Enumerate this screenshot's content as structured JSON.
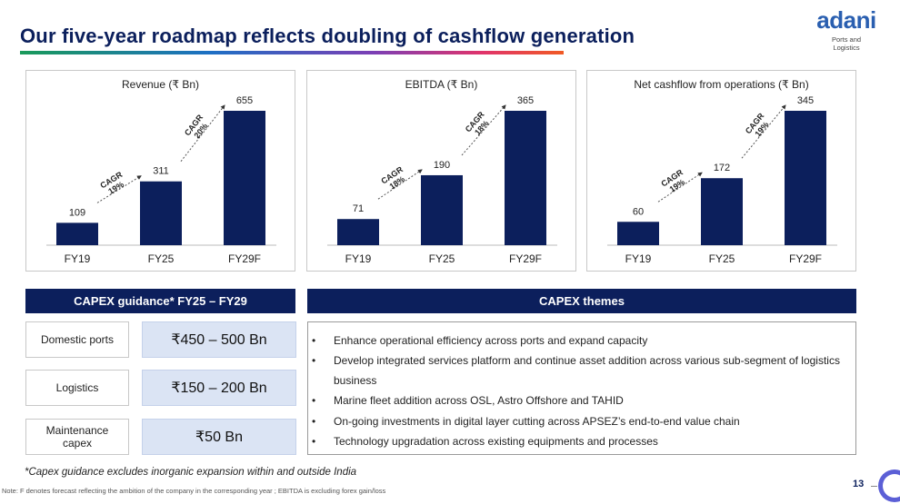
{
  "header": {
    "title": "Our five-year roadmap reflects doubling of cashflow generation",
    "logo": {
      "word": "adani",
      "sub_line1": "Ports and",
      "sub_line2": "Logistics"
    }
  },
  "colors": {
    "navy": "#0c1f5c",
    "bar": "#0c1f5c",
    "value_box": "#dbe4f4",
    "logo_blue": "#2a5fb0"
  },
  "chart_data": [
    {
      "type": "bar",
      "title": "Revenue (₹ Bn)",
      "categories": [
        "FY19",
        "FY25",
        "FY29F"
      ],
      "values": [
        109,
        311,
        655
      ],
      "cagr": [
        "CAGR\n19%",
        "CAGR\n20%"
      ],
      "ylim": [
        0,
        655
      ],
      "grid": false
    },
    {
      "type": "bar",
      "title": "EBITDA (₹ Bn)",
      "categories": [
        "FY19",
        "FY25",
        "FY29F"
      ],
      "values": [
        71,
        190,
        365
      ],
      "cagr": [
        "CAGR\n18%",
        "CAGR\n18%"
      ],
      "ylim": [
        0,
        365
      ],
      "grid": false
    },
    {
      "type": "bar",
      "title": "Net cashflow from operations (₹ Bn)",
      "categories": [
        "FY19",
        "FY25",
        "FY29F"
      ],
      "values": [
        60,
        172,
        345
      ],
      "cagr": [
        "CAGR\n19%",
        "CAGR\n19%"
      ],
      "ylim": [
        0,
        345
      ],
      "grid": false
    }
  ],
  "capex": {
    "header": "CAPEX guidance* FY25 – FY29",
    "rows": [
      {
        "label": "Domestic ports",
        "value": "₹450 – 500 Bn"
      },
      {
        "label": "Logistics",
        "value": "₹150 – 200 Bn"
      },
      {
        "label": "Maintenance capex",
        "value": "₹50 Bn"
      }
    ]
  },
  "themes": {
    "header": "CAPEX themes",
    "bullet": "•",
    "items": [
      "Enhance operational efficiency across ports and expand capacity",
      "Develop integrated services platform and continue asset addition across various sub-segment of logistics business",
      "Marine fleet addition across OSL, Astro Offshore and TAHID",
      "On-going investments in digital layer cutting across APSEZ’s end-to-end value chain",
      "Technology upgradation across existing equipments and processes"
    ]
  },
  "footer": {
    "footnote": "*Capex guidance excludes inorganic expansion within and outside India",
    "note": "Note: F denotes forecast reflecting the ambition of the company in the corresponding year ; EBITDA is excluding forex gain/loss",
    "page": "13"
  }
}
